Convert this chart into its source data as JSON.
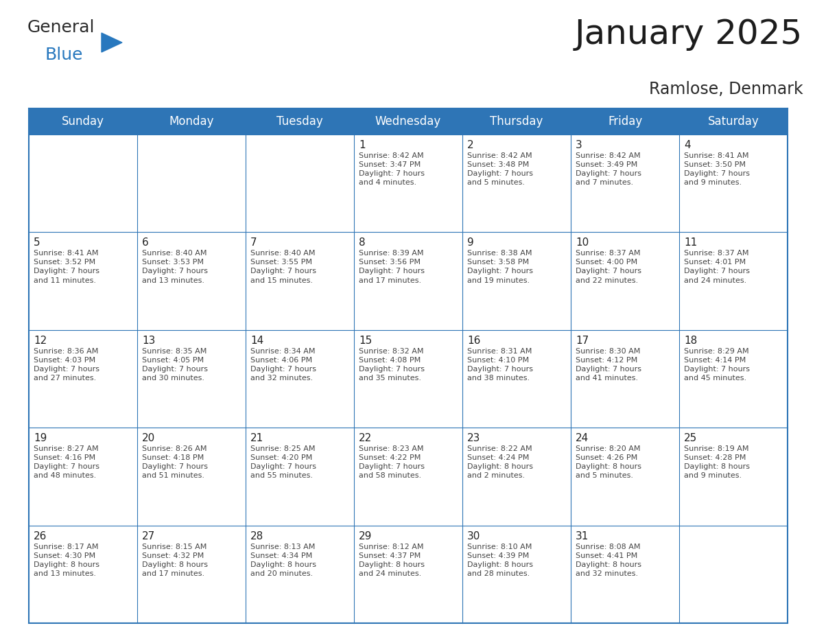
{
  "title": "January 2025",
  "subtitle": "Ramlose, Denmark",
  "header_color": "#2E75B6",
  "header_text_color": "#FFFFFF",
  "border_color": "#2E75B6",
  "text_color": "#333333",
  "day_num_color": "#222222",
  "info_text_color": "#444444",
  "bg_color": "#FFFFFF",
  "days_of_week": [
    "Sunday",
    "Monday",
    "Tuesday",
    "Wednesday",
    "Thursday",
    "Friday",
    "Saturday"
  ],
  "weeks": [
    [
      {
        "day": "",
        "info": ""
      },
      {
        "day": "",
        "info": ""
      },
      {
        "day": "",
        "info": ""
      },
      {
        "day": "1",
        "info": "Sunrise: 8:42 AM\nSunset: 3:47 PM\nDaylight: 7 hours\nand 4 minutes."
      },
      {
        "day": "2",
        "info": "Sunrise: 8:42 AM\nSunset: 3:48 PM\nDaylight: 7 hours\nand 5 minutes."
      },
      {
        "day": "3",
        "info": "Sunrise: 8:42 AM\nSunset: 3:49 PM\nDaylight: 7 hours\nand 7 minutes."
      },
      {
        "day": "4",
        "info": "Sunrise: 8:41 AM\nSunset: 3:50 PM\nDaylight: 7 hours\nand 9 minutes."
      }
    ],
    [
      {
        "day": "5",
        "info": "Sunrise: 8:41 AM\nSunset: 3:52 PM\nDaylight: 7 hours\nand 11 minutes."
      },
      {
        "day": "6",
        "info": "Sunrise: 8:40 AM\nSunset: 3:53 PM\nDaylight: 7 hours\nand 13 minutes."
      },
      {
        "day": "7",
        "info": "Sunrise: 8:40 AM\nSunset: 3:55 PM\nDaylight: 7 hours\nand 15 minutes."
      },
      {
        "day": "8",
        "info": "Sunrise: 8:39 AM\nSunset: 3:56 PM\nDaylight: 7 hours\nand 17 minutes."
      },
      {
        "day": "9",
        "info": "Sunrise: 8:38 AM\nSunset: 3:58 PM\nDaylight: 7 hours\nand 19 minutes."
      },
      {
        "day": "10",
        "info": "Sunrise: 8:37 AM\nSunset: 4:00 PM\nDaylight: 7 hours\nand 22 minutes."
      },
      {
        "day": "11",
        "info": "Sunrise: 8:37 AM\nSunset: 4:01 PM\nDaylight: 7 hours\nand 24 minutes."
      }
    ],
    [
      {
        "day": "12",
        "info": "Sunrise: 8:36 AM\nSunset: 4:03 PM\nDaylight: 7 hours\nand 27 minutes."
      },
      {
        "day": "13",
        "info": "Sunrise: 8:35 AM\nSunset: 4:05 PM\nDaylight: 7 hours\nand 30 minutes."
      },
      {
        "day": "14",
        "info": "Sunrise: 8:34 AM\nSunset: 4:06 PM\nDaylight: 7 hours\nand 32 minutes."
      },
      {
        "day": "15",
        "info": "Sunrise: 8:32 AM\nSunset: 4:08 PM\nDaylight: 7 hours\nand 35 minutes."
      },
      {
        "day": "16",
        "info": "Sunrise: 8:31 AM\nSunset: 4:10 PM\nDaylight: 7 hours\nand 38 minutes."
      },
      {
        "day": "17",
        "info": "Sunrise: 8:30 AM\nSunset: 4:12 PM\nDaylight: 7 hours\nand 41 minutes."
      },
      {
        "day": "18",
        "info": "Sunrise: 8:29 AM\nSunset: 4:14 PM\nDaylight: 7 hours\nand 45 minutes."
      }
    ],
    [
      {
        "day": "19",
        "info": "Sunrise: 8:27 AM\nSunset: 4:16 PM\nDaylight: 7 hours\nand 48 minutes."
      },
      {
        "day": "20",
        "info": "Sunrise: 8:26 AM\nSunset: 4:18 PM\nDaylight: 7 hours\nand 51 minutes."
      },
      {
        "day": "21",
        "info": "Sunrise: 8:25 AM\nSunset: 4:20 PM\nDaylight: 7 hours\nand 55 minutes."
      },
      {
        "day": "22",
        "info": "Sunrise: 8:23 AM\nSunset: 4:22 PM\nDaylight: 7 hours\nand 58 minutes."
      },
      {
        "day": "23",
        "info": "Sunrise: 8:22 AM\nSunset: 4:24 PM\nDaylight: 8 hours\nand 2 minutes."
      },
      {
        "day": "24",
        "info": "Sunrise: 8:20 AM\nSunset: 4:26 PM\nDaylight: 8 hours\nand 5 minutes."
      },
      {
        "day": "25",
        "info": "Sunrise: 8:19 AM\nSunset: 4:28 PM\nDaylight: 8 hours\nand 9 minutes."
      }
    ],
    [
      {
        "day": "26",
        "info": "Sunrise: 8:17 AM\nSunset: 4:30 PM\nDaylight: 8 hours\nand 13 minutes."
      },
      {
        "day": "27",
        "info": "Sunrise: 8:15 AM\nSunset: 4:32 PM\nDaylight: 8 hours\nand 17 minutes."
      },
      {
        "day": "28",
        "info": "Sunrise: 8:13 AM\nSunset: 4:34 PM\nDaylight: 8 hours\nand 20 minutes."
      },
      {
        "day": "29",
        "info": "Sunrise: 8:12 AM\nSunset: 4:37 PM\nDaylight: 8 hours\nand 24 minutes."
      },
      {
        "day": "30",
        "info": "Sunrise: 8:10 AM\nSunset: 4:39 PM\nDaylight: 8 hours\nand 28 minutes."
      },
      {
        "day": "31",
        "info": "Sunrise: 8:08 AM\nSunset: 4:41 PM\nDaylight: 8 hours\nand 32 minutes."
      },
      {
        "day": "",
        "info": ""
      }
    ]
  ],
  "logo_general_color": "#2B2B2B",
  "logo_blue_color": "#2878BE",
  "logo_triangle_color": "#2878BE",
  "title_fontsize": 36,
  "subtitle_fontsize": 17,
  "header_fontsize": 12,
  "day_num_fontsize": 11,
  "info_fontsize": 8
}
